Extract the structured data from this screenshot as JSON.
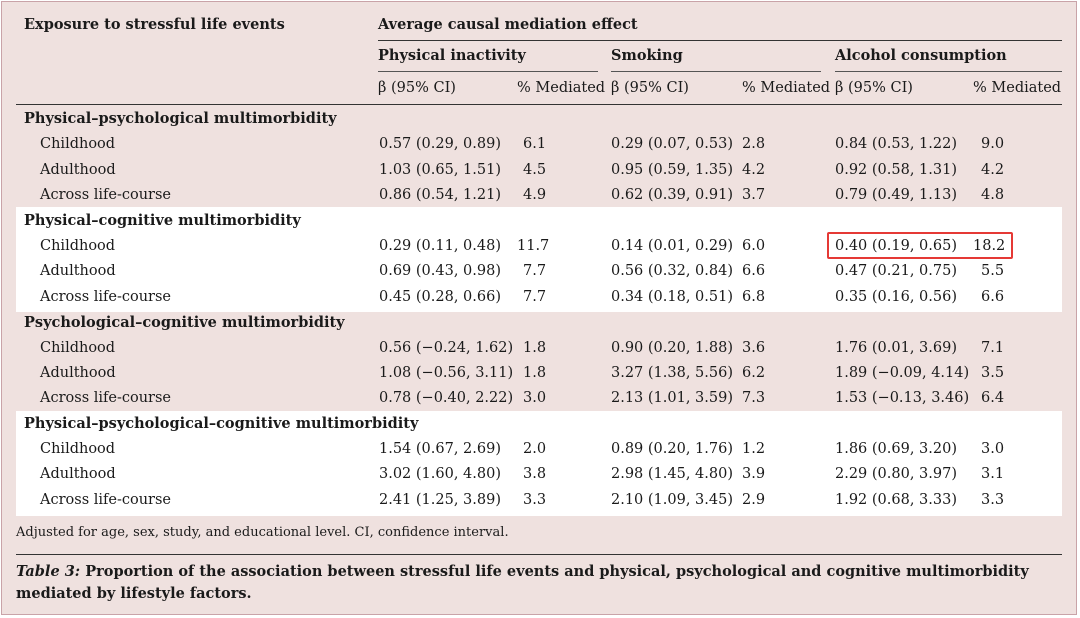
{
  "header": {
    "exposure": "Exposure to stressful life events",
    "acme": "Average causal mediation effect",
    "mediators": [
      "Physical inactivity",
      "Smoking",
      "Alcohol consumption"
    ],
    "beta_label": "β (95% CI)",
    "pct_label": "% Mediated"
  },
  "sections": [
    {
      "title": "Physical–psychological multimorbidity",
      "rows": [
        {
          "label": "Childhood",
          "cells": [
            "0.57 (0.29, 0.89)",
            "6.1",
            "0.29 (0.07, 0.53)",
            "2.8",
            "0.84 (0.53, 1.22)",
            "9.0"
          ]
        },
        {
          "label": "Adulthood",
          "cells": [
            "1.03 (0.65, 1.51)",
            "4.5",
            "0.95 (0.59, 1.35)",
            "4.2",
            "0.92 (0.58, 1.31)",
            "4.2"
          ]
        },
        {
          "label": "Across life-course",
          "cells": [
            "0.86 (0.54, 1.21)",
            "4.9",
            "0.62 (0.39, 0.91)",
            "3.7",
            "0.79 (0.49, 1.13)",
            "4.8"
          ]
        }
      ]
    },
    {
      "title": "Physical–cognitive multimorbidity",
      "rows": [
        {
          "label": "Childhood",
          "cells": [
            "0.29 (0.11, 0.48)",
            "11.7",
            "0.14 (0.01, 0.29)",
            "6.0",
            "0.40 (0.19, 0.65)",
            "18.2"
          ]
        },
        {
          "label": "Adulthood",
          "cells": [
            "0.69 (0.43, 0.98)",
            "7.7",
            "0.56 (0.32, 0.84)",
            "6.6",
            "0.47 (0.21, 0.75)",
            "5.5"
          ]
        },
        {
          "label": "Across life-course",
          "cells": [
            "0.45 (0.28, 0.66)",
            "7.7",
            "0.34 (0.18, 0.51)",
            "6.8",
            "0.35 (0.16, 0.56)",
            "6.6"
          ]
        }
      ]
    },
    {
      "title": "Psychological–cognitive multimorbidity",
      "rows": [
        {
          "label": "Childhood",
          "cells": [
            "0.56 (−0.24, 1.62)",
            "1.8",
            "0.90 (0.20, 1.88)",
            "3.6",
            "1.76 (0.01, 3.69)",
            "7.1"
          ]
        },
        {
          "label": "Adulthood",
          "cells": [
            "1.08 (−0.56, 3.11)",
            "1.8",
            "3.27 (1.38, 5.56)",
            "6.2",
            "1.89 (−0.09, 4.14)",
            "3.5"
          ]
        },
        {
          "label": "Across life-course",
          "cells": [
            "0.78 (−0.40, 2.22)",
            "3.0",
            "2.13 (1.01, 3.59)",
            "7.3",
            "1.53 (−0.13, 3.46)",
            "6.4"
          ]
        }
      ]
    },
    {
      "title": "Physical–psychological–cognitive multimorbidity",
      "rows": [
        {
          "label": "Childhood",
          "cells": [
            "1.54 (0.67, 2.69)",
            "2.0",
            "0.89 (0.20, 1.76)",
            "1.2",
            "1.86 (0.69, 3.20)",
            "3.0"
          ]
        },
        {
          "label": "Adulthood",
          "cells": [
            "3.02 (1.60, 4.80)",
            "3.8",
            "2.98 (1.45, 4.80)",
            "3.9",
            "2.29 (0.80, 3.97)",
            "3.1"
          ]
        },
        {
          "label": "Across life-course",
          "cells": [
            "2.41 (1.25, 3.89)",
            "3.3",
            "2.10 (1.09, 3.45)",
            "2.9",
            "1.92 (0.68, 3.33)",
            "3.3"
          ]
        }
      ]
    }
  ],
  "footnote": "Adjusted for age, sex, study, and educational level. CI, confidence interval.",
  "caption": {
    "label": "Table 3:",
    "text": "Proportion of the association between stressful life events and physical, psychological and cognitive multimorbidity mediated by lifestyle factors."
  },
  "colors": {
    "band_pink": "#efe1df",
    "band_white": "#ffffff",
    "highlight": "#e53935"
  }
}
